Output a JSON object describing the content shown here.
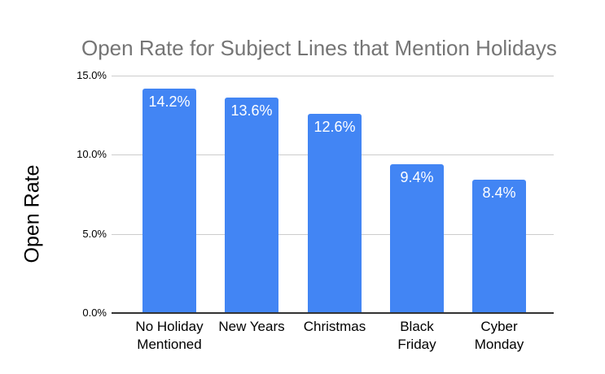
{
  "chart_data": {
    "type": "bar",
    "title": "Open Rate for Subject Lines that Mention Holidays",
    "ylabel": "Open Rate",
    "xlabel": "",
    "categories": [
      "No Holiday\nMentioned",
      "New Years",
      "Christmas",
      "Black\nFriday",
      "Cyber\nMonday"
    ],
    "values": [
      14.2,
      13.6,
      12.6,
      9.4,
      8.4
    ],
    "bar_labels": [
      "14.2%",
      "13.6%",
      "12.6%",
      "9.4%",
      "8.4%"
    ],
    "ytick_labels": [
      "15.0%",
      "10.0%",
      "5.0%",
      "0.0%"
    ],
    "ytick_values": [
      15,
      10,
      5,
      0
    ],
    "ylim": [
      0,
      15
    ],
    "grid": true,
    "legend": "none",
    "colors": {
      "bar": "#4285f4",
      "bar_label": "#ffffff",
      "title": "#757575",
      "axis_title": "#000000",
      "tick_label": "#000000",
      "gridline": "#cccccc",
      "axis_line": "#333333",
      "background": "#ffffff"
    }
  }
}
